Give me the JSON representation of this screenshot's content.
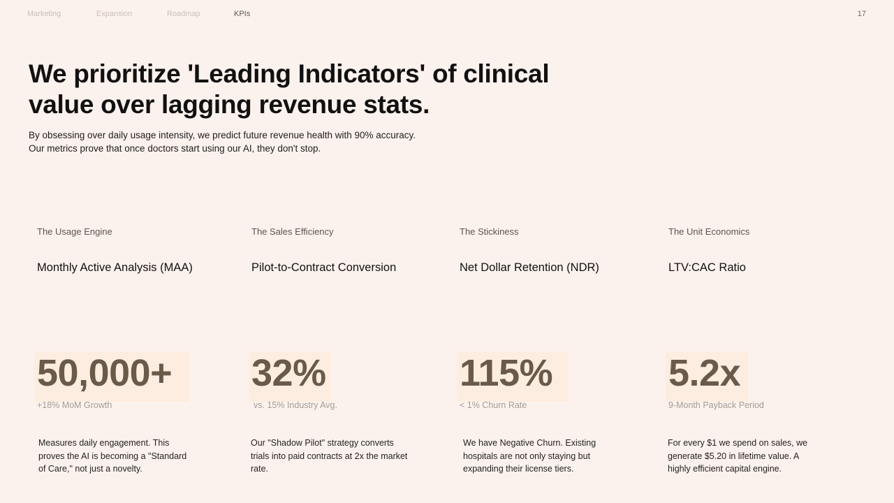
{
  "nav": {
    "items": [
      "Marketing",
      "Expansion",
      "Roadmap",
      "KPIs"
    ],
    "active": "KPIs",
    "page_number": "17"
  },
  "headline": {
    "line1": "We prioritize 'Leading Indicators' of clinical",
    "line2": "value over lagging revenue stats."
  },
  "subtext": {
    "line1": "By obsessing over daily usage intensity, we predict future revenue health with 90% accuracy.",
    "line2": "Our metrics prove that once doctors start using our AI, they don't stop."
  },
  "kpis": [
    {
      "category": "The Usage Engine",
      "metric": "Monthly Active Analysis (MAA)",
      "value": "50,000+",
      "sub": "+18% MoM Growth",
      "description": "Measures daily engagement. This proves the AI is becoming a \"Standard of Care,\" not just a novelty."
    },
    {
      "category": "The Sales Efficiency",
      "metric": "Pilot-to-Contract Conversion",
      "value": "32%",
      "sub": "vs. 15% Industry Avg.",
      "description": "Our \"Shadow Pilot\" strategy converts trials into paid contracts at 2x the market rate."
    },
    {
      "category": "The Stickiness",
      "metric": "Net Dollar Retention (NDR)",
      "value": "115%",
      "sub": "< 1% Churn Rate",
      "description": "We have Negative Churn. Existing hospitals are not only staying but expanding their license tiers."
    },
    {
      "category": "The Unit Economics",
      "metric": "LTV:CAC Ratio",
      "value": "5.2x",
      "sub": "9-Month Payback Period",
      "description": "For every $1 we spend on sales, we generate $5.20 in lifetime value. A highly efficient capital engine."
    }
  ],
  "colors": {
    "background": "#fcf2ed",
    "value_text": "#6a5a4a",
    "value_highlight": "#fdecde",
    "muted_text": "#a39b95"
  }
}
